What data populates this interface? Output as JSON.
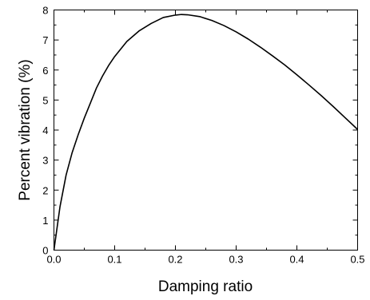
{
  "chart_data": {
    "type": "line",
    "xlabel": "Damping ratio",
    "ylabel": "Percent vibration (%)",
    "xlim": [
      0.0,
      0.5
    ],
    "ylim": [
      0,
      8
    ],
    "x_ticks": [
      "0.0",
      "0.1",
      "0.2",
      "0.3",
      "0.4",
      "0.5"
    ],
    "y_ticks": [
      "0",
      "1",
      "2",
      "3",
      "4",
      "5",
      "6",
      "7",
      "8"
    ],
    "x_tick_values": [
      0.0,
      0.1,
      0.2,
      0.3,
      0.4,
      0.5
    ],
    "y_tick_values": [
      0,
      1,
      2,
      3,
      4,
      5,
      6,
      7,
      8
    ],
    "grid": false,
    "legend": false,
    "colors": {
      "line": "#000000",
      "axis": "#000000"
    },
    "series": [
      {
        "x": [
          0.0,
          0.01,
          0.02,
          0.03,
          0.04,
          0.05,
          0.06,
          0.07,
          0.08,
          0.09,
          0.1,
          0.12,
          0.14,
          0.16,
          0.18,
          0.2,
          0.21,
          0.22,
          0.24,
          0.26,
          0.28,
          0.3,
          0.32,
          0.34,
          0.36,
          0.38,
          0.4,
          0.42,
          0.44,
          0.46,
          0.48,
          0.5
        ],
        "y": [
          0.0,
          1.45,
          2.5,
          3.25,
          3.85,
          4.4,
          4.9,
          5.4,
          5.8,
          6.15,
          6.45,
          6.95,
          7.3,
          7.55,
          7.75,
          7.83,
          7.85,
          7.84,
          7.78,
          7.65,
          7.48,
          7.27,
          7.03,
          6.76,
          6.47,
          6.17,
          5.84,
          5.5,
          5.15,
          4.78,
          4.4,
          4.02
        ]
      }
    ]
  }
}
